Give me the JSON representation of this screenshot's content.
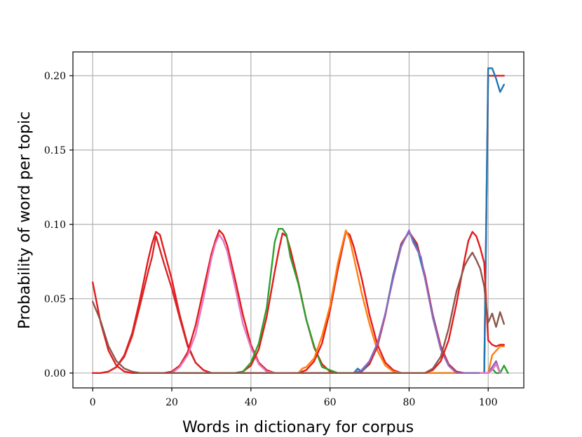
{
  "chart_data": {
    "type": "line",
    "title": "",
    "xlabel": "Words in dictionary for corpus",
    "ylabel": "Probability of word per topic",
    "xlim": [
      -5,
      109
    ],
    "ylim": [
      -0.01,
      0.216
    ],
    "xticks": [
      0,
      20,
      40,
      60,
      80,
      100
    ],
    "xtick_labels": [
      "0",
      "20",
      "40",
      "60",
      "80",
      "100"
    ],
    "yticks": [
      0.0,
      0.05,
      0.1,
      0.15,
      0.2
    ],
    "ytick_labels": [
      "0.00",
      "0.05",
      "0.10",
      "0.15",
      "0.20"
    ],
    "grid": true,
    "legend": "none",
    "series": [
      {
        "color": "#e41a1c",
        "points": [
          [
            0,
            0.061
          ],
          [
            2,
            0.034
          ],
          [
            4,
            0.015
          ],
          [
            6,
            0.005
          ],
          [
            8,
            0.001
          ],
          [
            10,
            0.0
          ],
          [
            12,
            0.0
          ],
          [
            14,
            0.0
          ],
          [
            16,
            0.0
          ],
          [
            20,
            0.0
          ],
          [
            30,
            0.0
          ],
          [
            40,
            0.0
          ],
          [
            50,
            0.0
          ],
          [
            60,
            0.0
          ],
          [
            70,
            0.0
          ],
          [
            80,
            0.0
          ],
          [
            90,
            0.0
          ],
          [
            99,
            0.0
          ],
          [
            100,
            0.2
          ],
          [
            104,
            0.2
          ]
        ]
      },
      {
        "color": "#e41a1c",
        "points": [
          [
            0,
            0.0
          ],
          [
            2,
            0.0
          ],
          [
            4,
            0.001
          ],
          [
            6,
            0.004
          ],
          [
            8,
            0.012
          ],
          [
            10,
            0.027
          ],
          [
            12,
            0.05
          ],
          [
            14,
            0.076
          ],
          [
            15,
            0.087
          ],
          [
            16,
            0.095
          ],
          [
            17,
            0.093
          ],
          [
            18,
            0.083
          ],
          [
            20,
            0.063
          ],
          [
            22,
            0.039
          ],
          [
            24,
            0.019
          ],
          [
            26,
            0.007
          ],
          [
            28,
            0.002
          ],
          [
            30,
            0.0
          ],
          [
            40,
            0.0
          ],
          [
            100,
            0.0
          ]
        ]
      },
      {
        "color": "#d62728",
        "points": [
          [
            2,
            0.0
          ],
          [
            4,
            0.001
          ],
          [
            6,
            0.004
          ],
          [
            8,
            0.011
          ],
          [
            10,
            0.025
          ],
          [
            12,
            0.046
          ],
          [
            14,
            0.068
          ],
          [
            15,
            0.078
          ],
          [
            16,
            0.092
          ],
          [
            17,
            0.083
          ],
          [
            18,
            0.074
          ],
          [
            20,
            0.057
          ],
          [
            22,
            0.037
          ],
          [
            24,
            0.018
          ],
          [
            26,
            0.007
          ],
          [
            28,
            0.002
          ],
          [
            30,
            0.0
          ],
          [
            36,
            0.0
          ]
        ]
      },
      {
        "color": "#e41a1c",
        "points": [
          [
            18,
            0.0
          ],
          [
            20,
            0.001
          ],
          [
            22,
            0.005
          ],
          [
            24,
            0.014
          ],
          [
            26,
            0.032
          ],
          [
            28,
            0.056
          ],
          [
            30,
            0.08
          ],
          [
            31,
            0.089
          ],
          [
            32,
            0.096
          ],
          [
            33,
            0.093
          ],
          [
            34,
            0.086
          ],
          [
            36,
            0.063
          ],
          [
            38,
            0.039
          ],
          [
            40,
            0.019
          ],
          [
            42,
            0.007
          ],
          [
            44,
            0.002
          ],
          [
            46,
            0.0
          ],
          [
            52,
            0.0
          ]
        ]
      },
      {
        "color": "#e377c2",
        "points": [
          [
            20,
            0.0
          ],
          [
            22,
            0.004
          ],
          [
            24,
            0.012
          ],
          [
            26,
            0.026
          ],
          [
            28,
            0.05
          ],
          [
            30,
            0.077
          ],
          [
            31,
            0.087
          ],
          [
            32,
            0.093
          ],
          [
            33,
            0.089
          ],
          [
            34,
            0.082
          ],
          [
            36,
            0.058
          ],
          [
            38,
            0.033
          ],
          [
            40,
            0.017
          ],
          [
            42,
            0.006
          ],
          [
            44,
            0.001
          ],
          [
            46,
            0.0
          ],
          [
            50,
            0.0
          ]
        ]
      },
      {
        "color": "#e41a1c",
        "points": [
          [
            36,
            0.0
          ],
          [
            38,
            0.001
          ],
          [
            40,
            0.005
          ],
          [
            42,
            0.016
          ],
          [
            44,
            0.038
          ],
          [
            46,
            0.068
          ],
          [
            47,
            0.082
          ],
          [
            48,
            0.094
          ],
          [
            49,
            0.092
          ],
          [
            50,
            0.083
          ],
          [
            52,
            0.061
          ],
          [
            54,
            0.036
          ],
          [
            56,
            0.017
          ],
          [
            58,
            0.006
          ],
          [
            60,
            0.001
          ],
          [
            62,
            0.0
          ],
          [
            68,
            0.0
          ]
        ]
      },
      {
        "color": "#2ca02c",
        "points": [
          [
            20,
            0.0
          ],
          [
            36,
            0.0
          ],
          [
            38,
            0.001
          ],
          [
            40,
            0.007
          ],
          [
            42,
            0.02
          ],
          [
            44,
            0.044
          ],
          [
            46,
            0.088
          ],
          [
            47,
            0.097
          ],
          [
            48,
            0.097
          ],
          [
            49,
            0.093
          ],
          [
            50,
            0.078
          ],
          [
            52,
            0.06
          ],
          [
            54,
            0.036
          ],
          [
            56,
            0.018
          ],
          [
            58,
            0.004
          ],
          [
            60,
            0.002
          ],
          [
            62,
            0.0
          ],
          [
            68,
            0.0
          ],
          [
            100,
            0.0
          ],
          [
            101,
            0.003
          ],
          [
            102,
            0.0
          ],
          [
            103,
            0.0
          ],
          [
            104,
            0.005
          ],
          [
            105,
            0.0
          ]
        ]
      },
      {
        "color": "#e41a1c",
        "points": [
          [
            52,
            0.0
          ],
          [
            54,
            0.002
          ],
          [
            56,
            0.008
          ],
          [
            58,
            0.02
          ],
          [
            60,
            0.042
          ],
          [
            62,
            0.07
          ],
          [
            64,
            0.095
          ],
          [
            65,
            0.093
          ],
          [
            66,
            0.085
          ],
          [
            68,
            0.064
          ],
          [
            70,
            0.039
          ],
          [
            72,
            0.019
          ],
          [
            74,
            0.007
          ],
          [
            76,
            0.002
          ],
          [
            78,
            0.0
          ],
          [
            84,
            0.0
          ]
        ]
      },
      {
        "color": "#ff7f0e",
        "points": [
          [
            52,
            0.0
          ],
          [
            53,
            0.003
          ],
          [
            54,
            0.004
          ],
          [
            56,
            0.01
          ],
          [
            58,
            0.025
          ],
          [
            60,
            0.045
          ],
          [
            62,
            0.074
          ],
          [
            63,
            0.085
          ],
          [
            64,
            0.096
          ],
          [
            65,
            0.09
          ],
          [
            66,
            0.078
          ],
          [
            67,
            0.066
          ],
          [
            68,
            0.054
          ],
          [
            70,
            0.033
          ],
          [
            72,
            0.015
          ],
          [
            74,
            0.005
          ],
          [
            76,
            0.001
          ],
          [
            78,
            0.0
          ],
          [
            84,
            0.0
          ],
          [
            100,
            0.0
          ],
          [
            101,
            0.012
          ],
          [
            102,
            0.015
          ],
          [
            103,
            0.018
          ],
          [
            104,
            0.018
          ]
        ]
      },
      {
        "color": "#e41a1c",
        "points": [
          [
            66,
            0.0
          ],
          [
            68,
            0.001
          ],
          [
            70,
            0.006
          ],
          [
            72,
            0.018
          ],
          [
            74,
            0.039
          ],
          [
            76,
            0.066
          ],
          [
            78,
            0.087
          ],
          [
            80,
            0.095
          ],
          [
            82,
            0.087
          ],
          [
            84,
            0.066
          ],
          [
            86,
            0.039
          ],
          [
            88,
            0.018
          ],
          [
            90,
            0.006
          ],
          [
            92,
            0.001
          ],
          [
            94,
            0.0
          ],
          [
            98,
            0.0
          ]
        ]
      },
      {
        "color": "#1f77b4",
        "points": [
          [
            66,
            0.0
          ],
          [
            67,
            0.003
          ],
          [
            68,
            0.001
          ],
          [
            69,
            0.004
          ],
          [
            70,
            0.008
          ],
          [
            72,
            0.02
          ],
          [
            74,
            0.04
          ],
          [
            76,
            0.066
          ],
          [
            78,
            0.086
          ],
          [
            80,
            0.095
          ],
          [
            82,
            0.085
          ],
          [
            84,
            0.064
          ],
          [
            86,
            0.038
          ],
          [
            88,
            0.016
          ],
          [
            90,
            0.005
          ],
          [
            92,
            0.0
          ],
          [
            99,
            0.0
          ],
          [
            100,
            0.205
          ],
          [
            101,
            0.205
          ],
          [
            102,
            0.198
          ],
          [
            103,
            0.189
          ],
          [
            104,
            0.194
          ]
        ]
      },
      {
        "color": "#9467bd",
        "points": [
          [
            66,
            0.0
          ],
          [
            68,
            0.002
          ],
          [
            70,
            0.008
          ],
          [
            72,
            0.02
          ],
          [
            74,
            0.04
          ],
          [
            76,
            0.064
          ],
          [
            78,
            0.085
          ],
          [
            80,
            0.096
          ],
          [
            81,
            0.088
          ],
          [
            82,
            0.083
          ],
          [
            83,
            0.078
          ],
          [
            84,
            0.064
          ],
          [
            86,
            0.037
          ],
          [
            88,
            0.016
          ],
          [
            90,
            0.005
          ],
          [
            92,
            0.0
          ],
          [
            100,
            0.0
          ],
          [
            102,
            0.008
          ],
          [
            103,
            0.0
          ]
        ]
      },
      {
        "color": "#e41a1c",
        "points": [
          [
            84,
            0.0
          ],
          [
            86,
            0.002
          ],
          [
            88,
            0.008
          ],
          [
            90,
            0.022
          ],
          [
            92,
            0.047
          ],
          [
            94,
            0.076
          ],
          [
            95,
            0.089
          ],
          [
            96,
            0.095
          ],
          [
            97,
            0.092
          ],
          [
            98,
            0.084
          ],
          [
            99,
            0.074
          ],
          [
            100,
            0.022
          ],
          [
            101,
            0.019
          ],
          [
            102,
            0.018
          ],
          [
            103,
            0.019
          ],
          [
            104,
            0.019
          ]
        ]
      },
      {
        "color": "#8c564b",
        "points": [
          [
            0,
            0.048
          ],
          [
            2,
            0.035
          ],
          [
            4,
            0.018
          ],
          [
            6,
            0.008
          ],
          [
            8,
            0.003
          ],
          [
            10,
            0.001
          ],
          [
            12,
            0.0
          ],
          [
            30,
            0.0
          ],
          [
            60,
            0.0
          ],
          [
            84,
            0.0
          ],
          [
            86,
            0.003
          ],
          [
            88,
            0.011
          ],
          [
            90,
            0.03
          ],
          [
            92,
            0.055
          ],
          [
            94,
            0.072
          ],
          [
            95,
            0.077
          ],
          [
            96,
            0.081
          ],
          [
            97,
            0.076
          ],
          [
            98,
            0.07
          ],
          [
            99,
            0.058
          ],
          [
            100,
            0.034
          ],
          [
            101,
            0.04
          ],
          [
            102,
            0.031
          ],
          [
            103,
            0.041
          ],
          [
            104,
            0.033
          ]
        ]
      },
      {
        "color": "#e377c2",
        "points": [
          [
            98,
            0.0
          ],
          [
            100,
            0.0
          ],
          [
            101,
            0.002
          ],
          [
            102,
            0.006
          ],
          [
            103,
            0.0
          ]
        ]
      }
    ]
  }
}
